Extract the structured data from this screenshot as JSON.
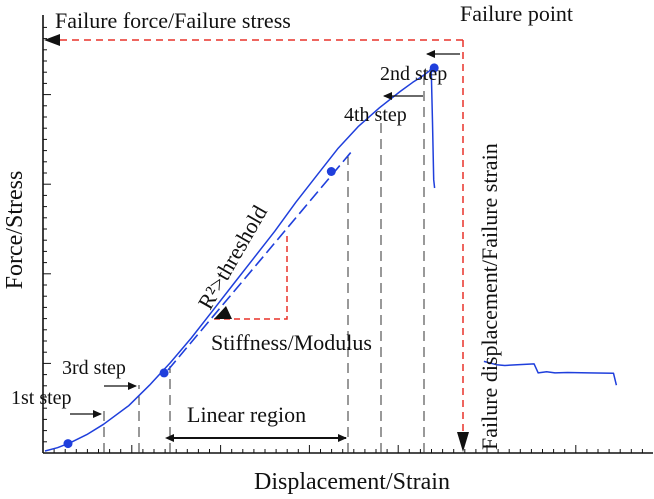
{
  "chart_data": {
    "type": "line",
    "xlabel": "Displacement/Strain",
    "ylabel": "Force/Stress",
    "grid": false,
    "xlim": [
      0,
      100
    ],
    "ylim": [
      0,
      100
    ],
    "series": [
      {
        "color": "#1f3fdc",
        "x": [
          0,
          3,
          6,
          10,
          14,
          20,
          25,
          30,
          35,
          40,
          45,
          50,
          55,
          60,
          65,
          70,
          75,
          80,
          85,
          88,
          90,
          92,
          92.4,
          92.7,
          93.0,
          93.2
        ],
        "y": [
          0,
          0.8,
          2.0,
          4.0,
          6.5,
          11.0,
          16.0,
          21.5,
          27.5,
          34.0,
          40.5,
          47.0,
          53.5,
          60.5,
          67.0,
          73.5,
          79.0,
          83.5,
          87.5,
          89.7,
          91.0,
          92.5,
          93.2,
          80.0,
          66.0,
          64.0
        ]
      },
      {
        "color": "#1f3fdc",
        "x": [
          105.0,
          108,
          110,
          113,
          117,
          118,
          120,
          122,
          125,
          130,
          136,
          136.7
        ],
        "y": [
          21.8,
          21.0,
          20.8,
          21.0,
          21.2,
          19.0,
          19.3,
          19.0,
          19.1,
          19.0,
          18.9,
          16.0
        ]
      }
    ],
    "key_points": {
      "color": "#1f3fdc",
      "x": [
        5.5,
        28.5,
        68.5,
        93.1
      ],
      "y": [
        1.8,
        19.0,
        68.0,
        93.2
      ]
    },
    "labels": {
      "failure_force": "Failure force/Failure stress",
      "failure_point": "Failure point",
      "failure_displacement": "Failure displacement/Failure strain",
      "second_step": "2nd step",
      "fourth_step": "4th step",
      "third_step": "3rd step",
      "first_step": "1st step",
      "r_squared": "R²>threshold",
      "stiffness": "Stiffness/Modulus",
      "linear_region": "Linear region"
    },
    "colors": {
      "curve": "#1f3fdc",
      "guide": "#e8322a",
      "axis": "#111111"
    }
  }
}
